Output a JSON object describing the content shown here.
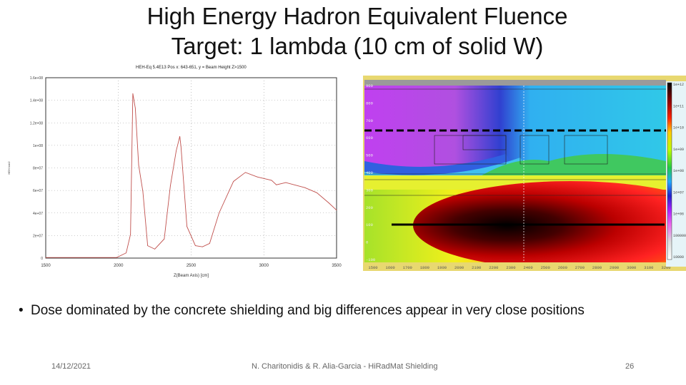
{
  "title_line1": "High Energy Hadron Equivalent Fluence",
  "title_line2": "Target: 1 lambda (10 cm of solid W)",
  "bullet": "Dose dominated by the concrete shielding and big differences appear in very close positions",
  "footer": {
    "date": "14/12/2021",
    "author": "N. Charitonidis & R. Alia-Garcia - HiRadMat Shielding",
    "page": "26"
  },
  "chart_data": [
    {
      "type": "line",
      "title": "HEH-Eq 5.4E13 Pos x: 643-651, y = Beam Height Z>1500",
      "xlabel": "Z(Beam Axis) [cm]",
      "ylabel": "HEH /cm2",
      "xlim": [
        1500,
        3500
      ],
      "ylim": [
        0,
        160000000.0
      ],
      "xticks": [
        "1500",
        "2000",
        "2500",
        "3000",
        "3500"
      ],
      "yticks": [
        "0",
        "2e+07",
        "4e+07",
        "6e+07",
        "8e+07",
        "1e+08",
        "1.2e+08",
        "1.4e+08",
        "1.6e+08"
      ],
      "grid": true,
      "color": "#c0504d",
      "x": [
        1500,
        1988,
        2053,
        2083,
        2099,
        2108,
        2116,
        2139,
        2168,
        2201,
        2250,
        2315,
        2357,
        2397,
        2422,
        2430,
        2471,
        2529,
        2578,
        2627,
        2692,
        2791,
        2873,
        2955,
        3053,
        3086,
        3151,
        3282,
        3364,
        3446,
        3500
      ],
      "y": [
        500000.0,
        500000.0,
        4600000.0,
        21000000.0,
        146000000.0,
        139000000.0,
        133000000.0,
        82500000.0,
        59000000.0,
        11000000.0,
        8000000.0,
        17000000.0,
        64000000.0,
        95000000.0,
        108000000.0,
        99000000.0,
        28000000.0,
        11000000.0,
        10000000.0,
        13000000.0,
        40000000.0,
        68000000.0,
        76000000.0,
        72000000.0,
        69000000.0,
        65000000.0,
        67000000.0,
        62500000.0,
        58000000.0,
        49000000.0,
        42500000.0
      ]
    },
    {
      "type": "heatmap",
      "xticks": [
        "1500",
        "1600",
        "1700",
        "1800",
        "1900",
        "2000",
        "2100",
        "2200",
        "2300",
        "2400",
        "2500",
        "2600",
        "2700",
        "2800",
        "2900",
        "3000",
        "3100",
        "3200"
      ],
      "yticks": [
        "900",
        "800",
        "700",
        "600",
        "500",
        "400",
        "300",
        "200",
        "100",
        "0",
        "-100"
      ],
      "colorbar": [
        "1e+12",
        "1e+11",
        "1e+10",
        "1e+09",
        "1e+08",
        "1e+07",
        "1e+06",
        "100000",
        "10000"
      ]
    }
  ]
}
